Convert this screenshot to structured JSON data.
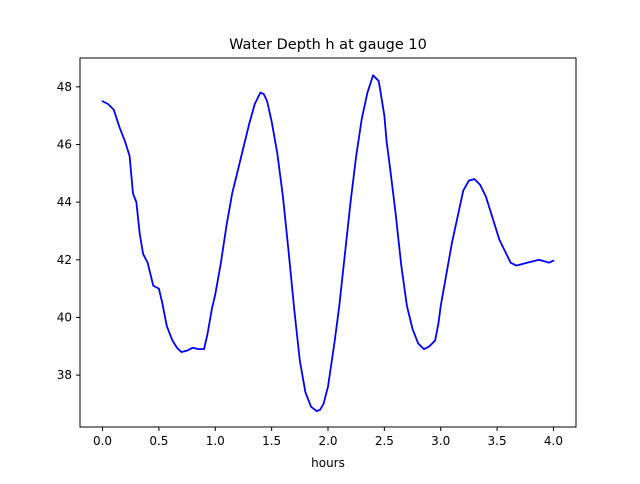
{
  "chart_data": {
    "type": "line",
    "title": "Water Depth h at gauge 10",
    "xlabel": "hours",
    "ylabel": "",
    "xlim": [
      -0.2,
      4.2
    ],
    "ylim": [
      36.2,
      49.0
    ],
    "xticks": [
      0.0,
      0.5,
      1.0,
      1.5,
      2.0,
      2.5,
      3.0,
      3.5,
      4.0
    ],
    "xtick_labels": [
      "0.0",
      "0.5",
      "1.0",
      "1.5",
      "2.0",
      "2.5",
      "3.0",
      "3.5",
      "4.0"
    ],
    "yticks": [
      38,
      40,
      42,
      44,
      46,
      48
    ],
    "ytick_labels": [
      "38",
      "40",
      "42",
      "44",
      "46",
      "48"
    ],
    "grid": false,
    "series": [
      {
        "color": "#0000ff",
        "x": [
          0.0,
          0.05,
          0.1,
          0.15,
          0.2,
          0.24,
          0.27,
          0.3,
          0.33,
          0.36,
          0.4,
          0.45,
          0.5,
          0.53,
          0.57,
          0.62,
          0.66,
          0.7,
          0.75,
          0.8,
          0.85,
          0.9,
          0.93,
          0.97,
          1.0,
          1.05,
          1.1,
          1.15,
          1.2,
          1.25,
          1.3,
          1.35,
          1.4,
          1.43,
          1.46,
          1.5,
          1.55,
          1.6,
          1.65,
          1.7,
          1.75,
          1.8,
          1.85,
          1.9,
          1.93,
          1.96,
          2.0,
          2.03,
          2.06,
          2.1,
          2.15,
          2.2,
          2.25,
          2.3,
          2.35,
          2.4,
          2.45,
          2.5,
          2.52,
          2.55,
          2.6,
          2.65,
          2.7,
          2.75,
          2.8,
          2.85,
          2.9,
          2.95,
          2.98,
          3.0,
          3.05,
          3.1,
          3.15,
          3.2,
          3.25,
          3.3,
          3.35,
          3.4,
          3.44,
          3.48,
          3.52,
          3.57,
          3.62,
          3.67,
          3.72,
          3.77,
          3.82,
          3.87,
          3.92,
          3.96,
          4.0
        ],
        "y": [
          47.5,
          47.4,
          47.2,
          46.6,
          46.1,
          45.6,
          44.3,
          44.0,
          42.9,
          42.2,
          41.9,
          41.1,
          41.0,
          40.5,
          39.7,
          39.2,
          38.95,
          38.8,
          38.85,
          38.95,
          38.9,
          38.9,
          39.4,
          40.3,
          40.8,
          41.9,
          43.2,
          44.3,
          45.1,
          45.9,
          46.7,
          47.4,
          47.8,
          47.75,
          47.5,
          46.8,
          45.7,
          44.2,
          42.3,
          40.3,
          38.5,
          37.4,
          36.9,
          36.75,
          36.8,
          37.0,
          37.6,
          38.4,
          39.2,
          40.4,
          42.2,
          44.0,
          45.6,
          46.9,
          47.8,
          48.4,
          48.2,
          47.0,
          46.1,
          45.2,
          43.6,
          41.8,
          40.4,
          39.6,
          39.1,
          38.9,
          39.0,
          39.2,
          39.8,
          40.4,
          41.5,
          42.6,
          43.5,
          44.4,
          44.75,
          44.8,
          44.6,
          44.2,
          43.7,
          43.2,
          42.7,
          42.3,
          41.9,
          41.8,
          41.85,
          41.9,
          41.95,
          42.0,
          41.95,
          41.9,
          41.97
        ]
      }
    ]
  }
}
